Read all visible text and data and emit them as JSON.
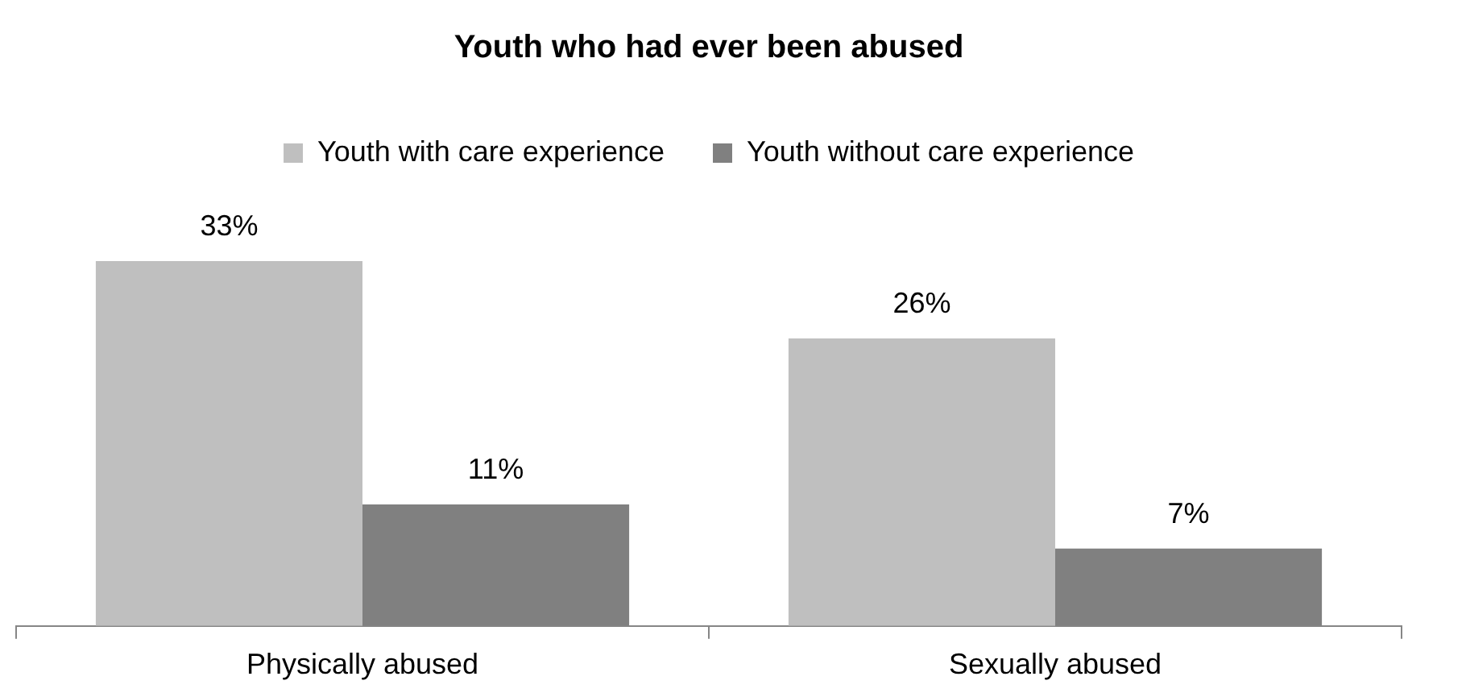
{
  "chart_data": {
    "type": "bar",
    "title": "Youth who had ever been abused",
    "categories": [
      "Physically abused",
      "Sexually abused"
    ],
    "series": [
      {
        "name": "Youth with care experience",
        "color": "#bfbfbf",
        "values": [
          33,
          26
        ],
        "value_labels": [
          "33%",
          "26%"
        ]
      },
      {
        "name": "Youth without care experience",
        "color": "#808080",
        "values": [
          11,
          7
        ],
        "value_labels": [
          "11%",
          "7%"
        ]
      }
    ],
    "legend": "top",
    "grid": false,
    "tick_labels": "x"
  }
}
